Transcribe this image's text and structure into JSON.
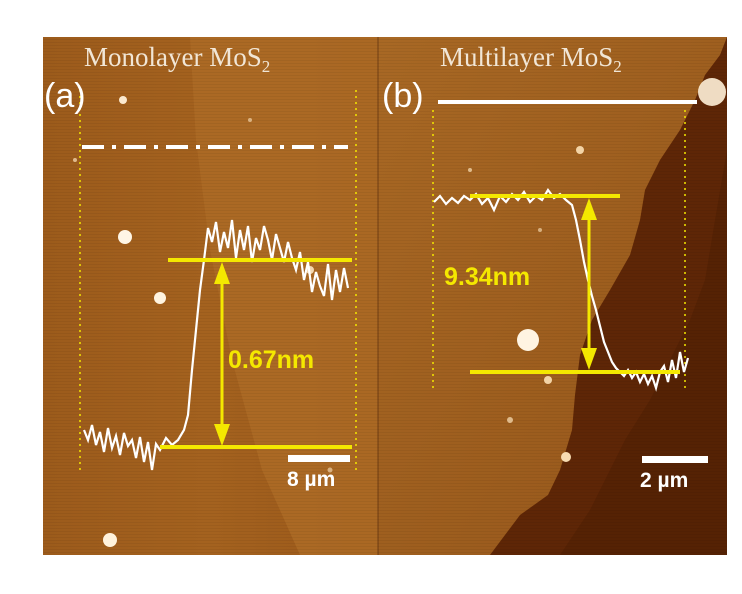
{
  "panels": {
    "a": {
      "letter": "(a)",
      "title_main": "Monolayer MoS",
      "title_sub": "2",
      "step_height": "0.67nm",
      "scale_bar": "8 µm"
    },
    "b": {
      "letter": "(b)",
      "title_main": "Multilayer MoS",
      "title_sub": "2",
      "step_height": "9.34nm",
      "scale_bar": "2 µm"
    }
  },
  "colors": {
    "afm_light": "#a2611f",
    "afm_mid": "#8a4a14",
    "afm_dark": "#5e2606",
    "profile_line": "#ffffff",
    "marker_yellow": "#f4e800",
    "page_background": "#ffffff"
  }
}
